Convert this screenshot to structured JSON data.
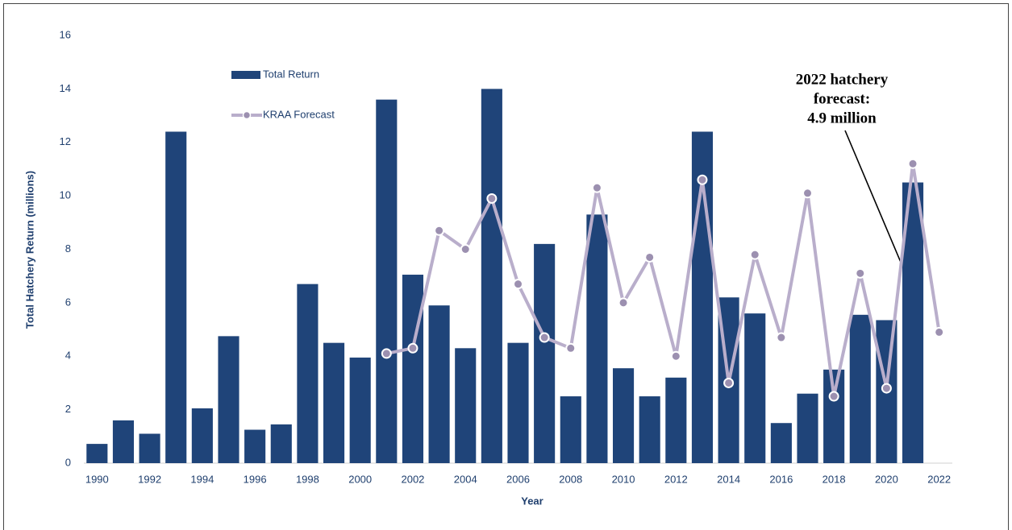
{
  "chart_data": {
    "type": "bar",
    "x_label": "Year",
    "y_label": "Total Hatchery  Return (millions)",
    "categories": [
      "1990",
      null,
      "1992",
      null,
      "1994",
      null,
      "1996",
      null,
      "1998",
      null,
      "2000",
      null,
      "2002",
      null,
      "2004",
      null,
      "2006",
      null,
      "2008",
      null,
      "2010",
      null,
      "2012",
      null,
      "2014",
      null,
      "2016",
      null,
      "2018",
      null,
      "2020",
      null,
      "2022"
    ],
    "series": [
      {
        "name": "Total Return",
        "color": "#1f4479",
        "type": "bar",
        "values": [
          0.72,
          1.6,
          1.1,
          12.4,
          2.05,
          4.75,
          1.25,
          1.45,
          6.7,
          4.5,
          3.95,
          13.6,
          7.05,
          5.9,
          4.3,
          14.0,
          4.5,
          8.2,
          2.5,
          9.3,
          3.55,
          2.5,
          3.2,
          12.4,
          6.2,
          5.6,
          1.5,
          2.6,
          3.5,
          5.55,
          5.35,
          10.5,
          null
        ]
      },
      {
        "name": "KRAA Forecast",
        "color": "#b9aecb",
        "marker_color": "#9c90b0",
        "type": "line",
        "values": [
          null,
          null,
          null,
          null,
          null,
          null,
          null,
          null,
          null,
          null,
          null,
          4.1,
          4.3,
          8.7,
          8.0,
          9.9,
          6.7,
          4.7,
          4.3,
          10.3,
          6.0,
          7.7,
          4.0,
          10.6,
          3.0,
          7.8,
          4.7,
          10.1,
          2.5,
          7.1,
          2.8,
          11.2,
          4.9
        ]
      }
    ],
    "ylim": [
      0,
      16
    ],
    "yticks": [
      0,
      2,
      4,
      6,
      8,
      10,
      12,
      14,
      16
    ],
    "legend": "upper left",
    "annotation": [
      "2022 hatchery",
      "forecast:",
      "4.9 million"
    ]
  }
}
